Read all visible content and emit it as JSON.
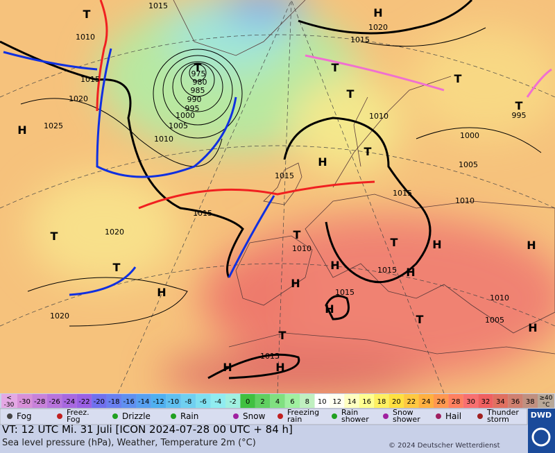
{
  "map": {
    "centers": [
      "H",
      "T",
      "T",
      "H",
      "T",
      "T",
      "T",
      "T",
      "H",
      "T",
      "T",
      "T",
      "H",
      "T",
      "H",
      "H",
      "T",
      "H",
      "H",
      "H",
      "H",
      "T",
      "H",
      "T",
      "H",
      "H"
    ],
    "isobars": [
      "1015",
      "1010",
      "1015",
      "1020",
      "1025",
      "975",
      "980",
      "985",
      "990",
      "995",
      "1000",
      "1005",
      "1010",
      "1015",
      "1020",
      "1020",
      "1020",
      "1015",
      "1010",
      "1000",
      "1005",
      "995",
      "1010",
      "1015",
      "1015",
      "1010",
      "1015",
      "1015",
      "1010",
      "1005",
      "1015"
    ]
  },
  "scale": {
    "under": [
      "<",
      "-30"
    ],
    "cells": [
      "-30",
      "-28",
      "-26",
      "-24",
      "-22",
      "-20",
      "-18",
      "-16",
      "-14",
      "-12",
      "-10",
      "-8",
      "-6",
      "-4",
      "-2",
      "0",
      "2",
      "4",
      "6",
      "8",
      "10",
      "12",
      "14",
      "16",
      "18",
      "20",
      "22",
      "24",
      "26",
      "28",
      "30",
      "32",
      "34",
      "36",
      "38"
    ],
    "colors": [
      "#d890d8",
      "#c882da",
      "#b874dc",
      "#a868e0",
      "#9a60e4",
      "#7070ee",
      "#6a80f0",
      "#6090f0",
      "#58a0f0",
      "#50b0f0",
      "#60c0f0",
      "#70d0f0",
      "#80e0f0",
      "#90ecf0",
      "#a0f0e0",
      "#40c040",
      "#60d060",
      "#80e080",
      "#a0f0a0",
      "#c0f0c0",
      "#ffffff",
      "#fffff0",
      "#ffffc0",
      "#ffff90",
      "#fff060",
      "#ffe040",
      "#ffc840",
      "#ffb040",
      "#ff9850",
      "#ff8060",
      "#f87070",
      "#f06060",
      "#e07060",
      "#d08070",
      "#c09080"
    ],
    "over": [
      "≥40",
      "°C"
    ]
  },
  "legend": {
    "items": [
      {
        "label": [
          "Fog"
        ]
      },
      {
        "label": [
          "Freez.",
          "Fog"
        ]
      },
      {
        "label": [
          "Drizzle"
        ]
      },
      {
        "label": [
          "Rain"
        ]
      },
      {
        "label": [
          "Snow"
        ]
      },
      {
        "label": [
          "Freezing",
          "rain"
        ]
      },
      {
        "label": [
          "Rain",
          "shower"
        ]
      },
      {
        "label": [
          "Snow",
          "shower"
        ]
      },
      {
        "label": [
          "Hail"
        ]
      },
      {
        "label": [
          "Thunder",
          "storm"
        ]
      }
    ]
  },
  "footer": {
    "valid": "VT: 12 UTC Mi.  31 Juli [ICON 2024-07-28  00 UTC + 84 h]",
    "subtitle": "Sea level pressure (hPa), Weather, Temperature 2m (°C)",
    "copyright": "© 2024 Deutscher Wetterdienst",
    "logo": "DWD"
  }
}
